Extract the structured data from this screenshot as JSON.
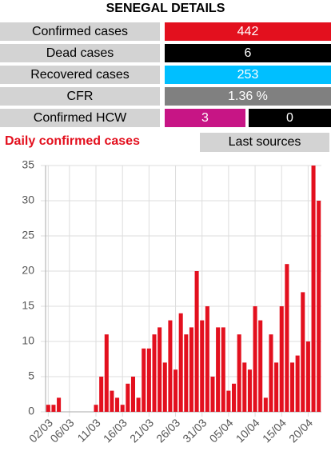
{
  "title": "SENEGAL DETAILS",
  "rows": [
    {
      "label": "Confirmed cases",
      "values": [
        442
      ]
    },
    {
      "label": "Dead cases",
      "values": [
        6
      ]
    },
    {
      "label": "Recovered cases",
      "values": [
        253
      ]
    },
    {
      "label": "CFR",
      "values": [
        "1.36 %"
      ]
    },
    {
      "label": "Confirmed HCW",
      "values": [
        3,
        0
      ]
    }
  ],
  "section_title": "Daily confirmed cases",
  "button": "Last sources",
  "chart_data": {
    "type": "bar",
    "color": "#e3101e",
    "grid": true,
    "categories": [
      "02/03",
      null,
      null,
      null,
      "06/03",
      null,
      null,
      null,
      null,
      "11/03",
      null,
      null,
      null,
      null,
      "16/03",
      null,
      null,
      null,
      null,
      "21/03",
      null,
      null,
      null,
      null,
      "26/03",
      null,
      null,
      null,
      null,
      "31/03",
      null,
      null,
      null,
      null,
      "05/04",
      null,
      null,
      null,
      null,
      "10/04",
      null,
      null,
      null,
      null,
      "15/04",
      null,
      null,
      null,
      null,
      "20/04",
      null,
      null
    ],
    "values": [
      1,
      1,
      2,
      0,
      0,
      0,
      0,
      0,
      0,
      1,
      5,
      11,
      3,
      2,
      1,
      4,
      5,
      2,
      9,
      9,
      11,
      12,
      7,
      13,
      6,
      14,
      11,
      12,
      20,
      13,
      15,
      5,
      12,
      12,
      3,
      4,
      11,
      7,
      6,
      15,
      13,
      2,
      11,
      7,
      15,
      21,
      7,
      8,
      17,
      10,
      35,
      30
    ],
    "ylim": [
      0,
      35
    ],
    "yticks": [
      0,
      5,
      10,
      15,
      20,
      25,
      30,
      35
    ]
  }
}
